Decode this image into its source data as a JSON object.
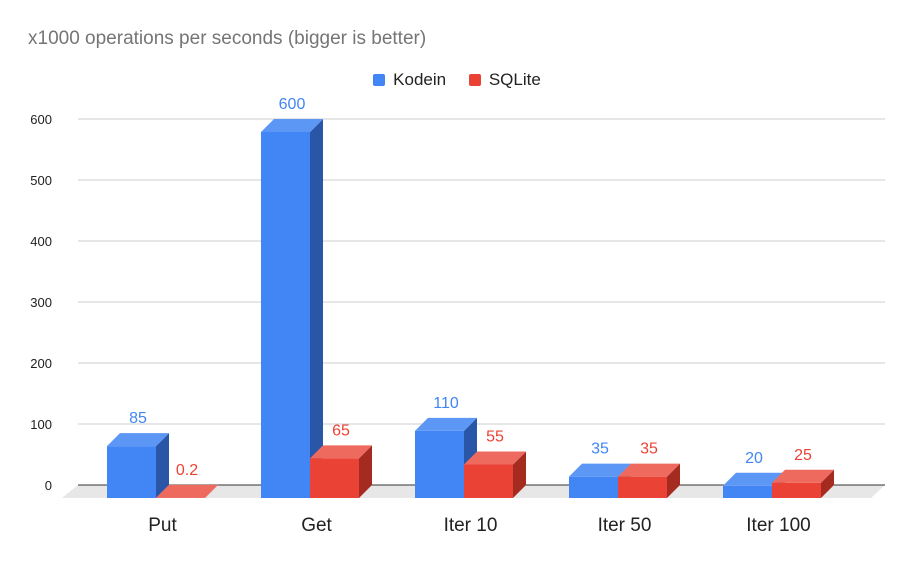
{
  "chart_data": {
    "type": "bar",
    "title": "x1000 operations per seconds (bigger is better)",
    "xlabel": "",
    "ylabel": "",
    "categories": [
      "Put",
      "Get",
      "Iter 10",
      "Iter 50",
      "Iter 100"
    ],
    "series": [
      {
        "name": "Kodein",
        "values": [
          85,
          600,
          110,
          35,
          20
        ],
        "labels": [
          "85",
          "600",
          "110",
          "35",
          "20"
        ],
        "color": "#4285f4",
        "side_color": "#2a56a8",
        "top_color": "#5c97f6"
      },
      {
        "name": "SQLite",
        "values": [
          0.2,
          65,
          55,
          35,
          25
        ],
        "labels": [
          "0.2",
          "65",
          "55",
          "35",
          "25"
        ],
        "color": "#ea4335",
        "side_color": "#a52a20",
        "top_color": "#ef6a5e"
      }
    ],
    "ylim": [
      0,
      600
    ],
    "yticks": [
      0,
      100,
      200,
      300,
      400,
      500,
      600
    ],
    "ytick_labels": [
      "0",
      "100",
      "200",
      "300",
      "400",
      "500",
      "600"
    ],
    "grid": true,
    "legend_position": "top",
    "style": "3d-bar"
  }
}
